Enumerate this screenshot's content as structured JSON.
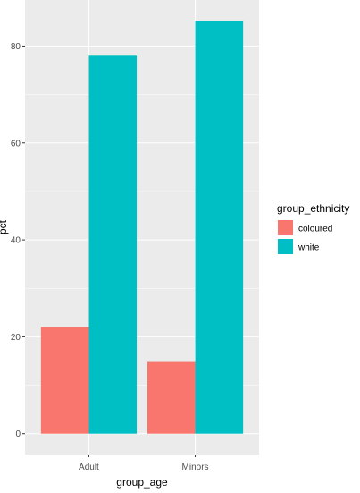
{
  "chart_data": {
    "type": "bar",
    "categories": [
      "Adult",
      "Minors"
    ],
    "series": [
      {
        "name": "coloured",
        "values": [
          22,
          14.8
        ],
        "color": "#F8766D"
      },
      {
        "name": "white",
        "values": [
          78,
          85.2
        ],
        "color": "#00BFC4"
      }
    ],
    "xlabel": "group_age",
    "ylabel": "pct",
    "ylim": [
      -4.3,
      89.5
    ],
    "yticks": [
      0,
      20,
      40,
      60,
      80
    ],
    "yticks_labels": [
      "0",
      "20",
      "40",
      "60",
      "80"
    ],
    "legend": {
      "title": "group_ethnicity",
      "position": "right"
    },
    "grid": true,
    "panel_background": "#EBEBEB",
    "grid_color": "#FFFFFF"
  }
}
